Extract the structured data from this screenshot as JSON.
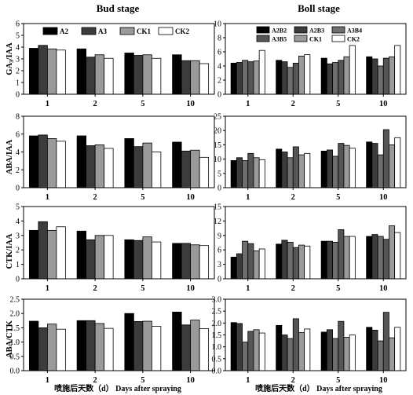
{
  "figure": {
    "col_titles": [
      "Bud stage",
      "Boll stage"
    ],
    "x_label": "喷施后天数（d） Days after spraying",
    "row_ylabels": [
      "GA3/IAA",
      "ABA/IAA",
      "CTK/IAA",
      "ABA/CTK"
    ]
  },
  "legends": {
    "bud": [
      "A2",
      "A3",
      "CK1",
      "CK2"
    ],
    "boll": [
      "A2B2",
      "A2B3",
      "A3B4",
      "A3B5",
      "CK1",
      "CK2"
    ]
  },
  "colors": {
    "bud": [
      "#000000",
      "#3c3c3c",
      "#9a9a9a",
      "#ffffff"
    ],
    "boll": [
      "#000000",
      "#3c3c3c",
      "#6e6e6e",
      "#555555",
      "#9a9a9a",
      "#ffffff"
    ]
  },
  "chart_data": [
    {
      "type": "bar",
      "panel": "bud-ga3iaa",
      "ylabel": "GA3/IAA",
      "categories": [
        "1",
        "2",
        "5",
        "10"
      ],
      "ylim": [
        0,
        6
      ],
      "yticks": [
        0,
        1,
        2,
        3,
        4,
        5,
        6
      ],
      "legend_position": "top-center",
      "series": [
        {
          "name": "A2",
          "values": [
            3.9,
            3.85,
            3.5,
            3.35
          ]
        },
        {
          "name": "A3",
          "values": [
            4.15,
            3.15,
            3.3,
            2.85
          ]
        },
        {
          "name": "CK1",
          "values": [
            3.85,
            3.35,
            3.35,
            2.85
          ]
        },
        {
          "name": "CK2",
          "values": [
            3.75,
            3.05,
            3.05,
            2.6
          ]
        }
      ]
    },
    {
      "type": "bar",
      "panel": "boll-ga3iaa",
      "ylabel": "",
      "categories": [
        "1",
        "2",
        "5",
        "10"
      ],
      "ylim": [
        0,
        10
      ],
      "yticks": [
        0,
        2,
        4,
        6,
        8,
        10
      ],
      "legend_position": "top-center",
      "series": [
        {
          "name": "A2B2",
          "values": [
            4.4,
            4.8,
            5.1,
            5.3
          ]
        },
        {
          "name": "A2B3",
          "values": [
            4.5,
            4.6,
            4.3,
            5.0
          ]
        },
        {
          "name": "A3B4",
          "values": [
            4.8,
            3.8,
            4.5,
            4.0
          ]
        },
        {
          "name": "A3B5",
          "values": [
            4.6,
            4.4,
            4.8,
            5.1
          ]
        },
        {
          "name": "CK1",
          "values": [
            4.7,
            5.4,
            5.3,
            5.3
          ]
        },
        {
          "name": "CK2",
          "values": [
            6.2,
            5.6,
            6.9,
            6.9
          ]
        }
      ]
    },
    {
      "type": "bar",
      "panel": "bud-abaiaa",
      "ylabel": "ABA/IAA",
      "categories": [
        "1",
        "2",
        "5",
        "10"
      ],
      "ylim": [
        0,
        8
      ],
      "yticks": [
        0,
        2,
        4,
        6,
        8
      ],
      "series": [
        {
          "name": "A2",
          "values": [
            5.8,
            5.8,
            5.5,
            5.1
          ]
        },
        {
          "name": "A3",
          "values": [
            5.9,
            4.7,
            4.6,
            4.1
          ]
        },
        {
          "name": "CK1",
          "values": [
            5.5,
            4.8,
            5.0,
            4.2
          ]
        },
        {
          "name": "CK2",
          "values": [
            5.2,
            4.4,
            4.0,
            3.4
          ]
        }
      ]
    },
    {
      "type": "bar",
      "panel": "boll-abaiaa",
      "ylabel": "",
      "categories": [
        "1",
        "2",
        "5",
        "10"
      ],
      "ylim": [
        0,
        25
      ],
      "yticks": [
        0,
        5,
        10,
        15,
        20,
        25
      ],
      "series": [
        {
          "name": "A2B2",
          "values": [
            9.5,
            13.5,
            12.8,
            16.0
          ]
        },
        {
          "name": "A2B3",
          "values": [
            10.5,
            12.5,
            13.2,
            15.5
          ]
        },
        {
          "name": "A3B4",
          "values": [
            9.5,
            10.5,
            11.0,
            11.5
          ]
        },
        {
          "name": "A3B5",
          "values": [
            12.0,
            14.3,
            15.5,
            20.3
          ]
        },
        {
          "name": "CK1",
          "values": [
            10.5,
            11.5,
            14.8,
            15.0
          ]
        },
        {
          "name": "CK2",
          "values": [
            9.8,
            12.0,
            13.8,
            17.5
          ]
        }
      ]
    },
    {
      "type": "bar",
      "panel": "bud-ctkiaa",
      "ylabel": "CTK/IAA",
      "categories": [
        "1",
        "2",
        "5",
        "10"
      ],
      "ylim": [
        0,
        5
      ],
      "yticks": [
        0,
        1,
        2,
        3,
        4,
        5
      ],
      "series": [
        {
          "name": "A2",
          "values": [
            3.35,
            3.3,
            2.7,
            2.45
          ]
        },
        {
          "name": "A3",
          "values": [
            3.95,
            2.7,
            2.65,
            2.45
          ]
        },
        {
          "name": "CK1",
          "values": [
            3.35,
            3.0,
            2.9,
            2.35
          ]
        },
        {
          "name": "CK2",
          "values": [
            3.6,
            3.0,
            2.55,
            2.3
          ]
        }
      ]
    },
    {
      "type": "bar",
      "panel": "boll-ctkiaa",
      "ylabel": "",
      "categories": [
        "1",
        "2",
        "5",
        "10"
      ],
      "ylim": [
        0,
        15
      ],
      "yticks": [
        0,
        3,
        6,
        9,
        12,
        15
      ],
      "series": [
        {
          "name": "A2B2",
          "values": [
            4.5,
            7.2,
            7.8,
            8.8
          ]
        },
        {
          "name": "A2B3",
          "values": [
            5.2,
            8.0,
            7.8,
            9.2
          ]
        },
        {
          "name": "A3B4",
          "values": [
            7.8,
            7.6,
            7.6,
            8.8
          ]
        },
        {
          "name": "A3B5",
          "values": [
            7.3,
            6.5,
            10.2,
            8.2
          ]
        },
        {
          "name": "CK1",
          "values": [
            5.8,
            7.0,
            8.8,
            11.0
          ]
        },
        {
          "name": "CK2",
          "values": [
            6.2,
            6.8,
            8.8,
            9.6
          ]
        }
      ]
    },
    {
      "type": "bar",
      "panel": "bud-abactk",
      "ylabel": "ABA/CTK",
      "categories": [
        "1",
        "2",
        "5",
        "10"
      ],
      "ylim": [
        0,
        2.5
      ],
      "yticks": [
        0,
        0.5,
        1.0,
        1.5,
        2.0,
        2.5
      ],
      "series": [
        {
          "name": "A2",
          "values": [
            1.73,
            1.75,
            2.0,
            2.05
          ]
        },
        {
          "name": "A3",
          "values": [
            1.5,
            1.75,
            1.72,
            1.6
          ]
        },
        {
          "name": "CK1",
          "values": [
            1.63,
            1.65,
            1.73,
            1.77
          ]
        },
        {
          "name": "CK2",
          "values": [
            1.45,
            1.48,
            1.55,
            1.47
          ]
        }
      ]
    },
    {
      "type": "bar",
      "panel": "boll-abactk",
      "ylabel": "",
      "categories": [
        "1",
        "2",
        "5",
        "10"
      ],
      "ylim": [
        0,
        3.0
      ],
      "yticks": [
        0,
        0.5,
        1.0,
        1.5,
        2.0,
        2.5,
        3.0
      ],
      "series": [
        {
          "name": "A2B2",
          "values": [
            2.02,
            1.9,
            1.62,
            1.82
          ]
        },
        {
          "name": "A2B3",
          "values": [
            1.98,
            1.5,
            1.72,
            1.7
          ]
        },
        {
          "name": "A3B4",
          "values": [
            1.2,
            1.35,
            1.35,
            1.25
          ]
        },
        {
          "name": "A3B5",
          "values": [
            1.65,
            2.18,
            2.07,
            2.45
          ]
        },
        {
          "name": "CK1",
          "values": [
            1.72,
            1.6,
            1.4,
            1.38
          ]
        },
        {
          "name": "CK2",
          "values": [
            1.58,
            1.75,
            1.5,
            1.82
          ]
        }
      ]
    }
  ]
}
